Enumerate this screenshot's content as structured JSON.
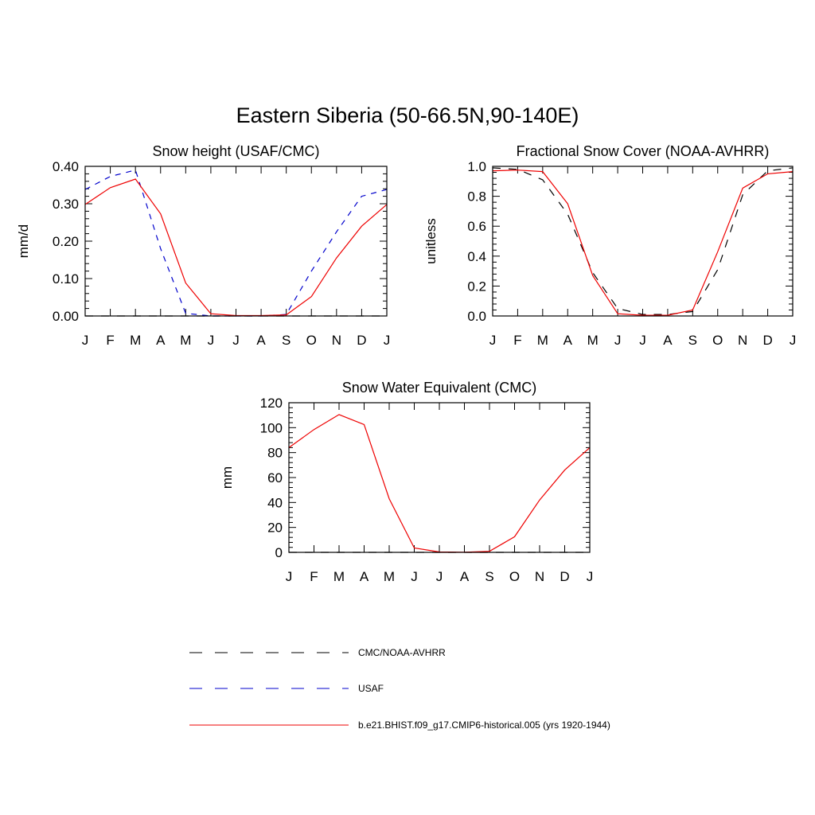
{
  "title": "Eastern Siberia (50-66.5N,90-140E)",
  "colors": {
    "obs": "#000000",
    "usaf": "#0000cc",
    "model": "#ee0000"
  },
  "months": [
    "J",
    "F",
    "M",
    "A",
    "M",
    "J",
    "J",
    "A",
    "S",
    "O",
    "N",
    "D",
    "J"
  ],
  "chart_data": [
    {
      "type": "line",
      "title": "Snow height (USAF/CMC)",
      "ylabel": "mm/d",
      "xlabel": "",
      "ylim": [
        0,
        0.4
      ],
      "yticks": [
        0,
        0.1,
        0.2,
        0.3,
        0.4
      ],
      "yticklabels": [
        "0.00",
        "0.10",
        "0.20",
        "0.30",
        "0.40"
      ],
      "categories": [
        "J",
        "F",
        "M",
        "A",
        "M",
        "J",
        "J",
        "A",
        "S",
        "O",
        "N",
        "D",
        "J"
      ],
      "series": [
        {
          "key": "obs",
          "values": [
            0,
            0,
            0,
            0,
            0,
            0,
            0,
            0,
            0,
            0,
            0,
            0,
            0
          ]
        },
        {
          "key": "usaf",
          "values": [
            0.338,
            0.373,
            0.39,
            0.18,
            0.007,
            0,
            0,
            0,
            0.004,
            0.12,
            0.225,
            0.32,
            0.338
          ]
        },
        {
          "key": "model",
          "values": [
            0.298,
            0.343,
            0.366,
            0.273,
            0.088,
            0.006,
            0.001,
            0.001,
            0.003,
            0.052,
            0.155,
            0.24,
            0.298
          ]
        }
      ]
    },
    {
      "type": "line",
      "title": "Fractional Snow Cover (NOAA-AVHRR)",
      "ylabel": "unitless",
      "xlabel": "",
      "ylim": [
        0,
        1.0
      ],
      "yticks": [
        0,
        0.2,
        0.4,
        0.6,
        0.8,
        1.0
      ],
      "yticklabels": [
        "0.0",
        "0.2",
        "0.4",
        "0.6",
        "0.8",
        "1.0"
      ],
      "categories": [
        "J",
        "F",
        "M",
        "A",
        "M",
        "J",
        "J",
        "A",
        "S",
        "O",
        "N",
        "D",
        "J"
      ],
      "series": [
        {
          "key": "obs",
          "values": [
            0.99,
            0.98,
            0.91,
            0.68,
            0.29,
            0.05,
            0.01,
            0.01,
            0.03,
            0.31,
            0.81,
            0.97,
            0.99
          ]
        },
        {
          "key": "model",
          "values": [
            0.97,
            0.975,
            0.965,
            0.75,
            0.27,
            0.015,
            0.005,
            0.005,
            0.04,
            0.43,
            0.855,
            0.95,
            0.965
          ]
        }
      ]
    },
    {
      "type": "line",
      "title": "Snow Water Equivalent (CMC)",
      "ylabel": "mm",
      "xlabel": "",
      "ylim": [
        0,
        120
      ],
      "yticks": [
        0,
        20,
        40,
        60,
        80,
        100,
        120
      ],
      "yticklabels": [
        "0",
        "20",
        "40",
        "60",
        "80",
        "100",
        "120"
      ],
      "categories": [
        "J",
        "F",
        "M",
        "A",
        "M",
        "J",
        "J",
        "A",
        "S",
        "O",
        "N",
        "D",
        "J"
      ],
      "series": [
        {
          "key": "obs",
          "values": [
            0,
            0,
            0,
            0,
            0,
            0,
            0,
            0,
            0,
            0,
            0,
            0,
            0
          ]
        },
        {
          "key": "model",
          "values": [
            84,
            98.5,
            110.5,
            102.5,
            43,
            3.5,
            0.3,
            0.1,
            0.8,
            12.5,
            42,
            66,
            84
          ]
        }
      ]
    }
  ],
  "legend": [
    {
      "key": "obs",
      "label": "CMC/NOAA-AVHRR"
    },
    {
      "key": "usaf",
      "label": "USAF"
    },
    {
      "key": "model",
      "label": "b.e21.BHIST.f09_g17.CMIP6-historical.005 (yrs 1920-1944)"
    }
  ]
}
